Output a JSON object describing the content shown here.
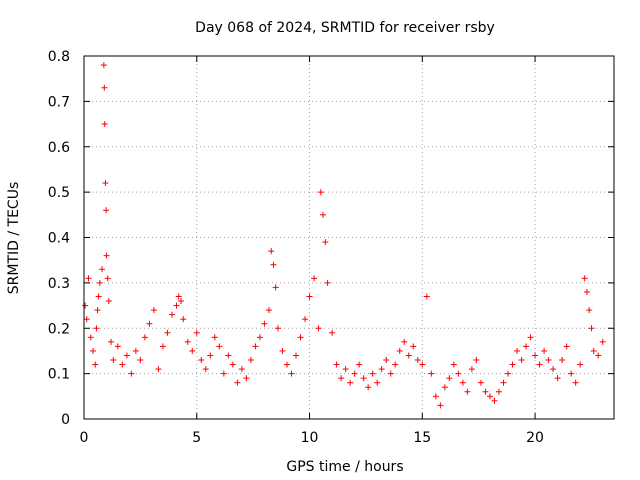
{
  "chart_data": {
    "type": "scatter",
    "title": "Day 068 of 2024, SRMTID for receiver rsby",
    "xlabel": "GPS time / hours",
    "ylabel": "SRMTID / TECUs",
    "xlim": [
      0,
      23.5
    ],
    "ylim": [
      0,
      0.8
    ],
    "xticks": [
      0,
      5,
      10,
      15,
      20
    ],
    "yticks": [
      0,
      0.1,
      0.2,
      0.3,
      0.4,
      0.5,
      0.6,
      0.7,
      0.8
    ],
    "xtick_labels": [
      "0",
      "5",
      "10",
      "15",
      "20"
    ],
    "ytick_labels": [
      "0",
      "0.1",
      "0.2",
      "0.3",
      "0.4",
      "0.5",
      "0.6",
      "0.7",
      "0.8"
    ],
    "grid": true,
    "marker": "+",
    "color": "#ff0000",
    "series": [
      {
        "name": "SRMTID",
        "x": [
          0.05,
          0.12,
          0.2,
          0.3,
          0.4,
          0.5,
          0.55,
          0.6,
          0.65,
          0.7,
          0.8,
          0.88,
          0.9,
          0.92,
          0.95,
          0.98,
          1.0,
          1.05,
          1.1,
          1.2,
          1.3,
          1.5,
          1.7,
          1.9,
          2.1,
          2.3,
          2.5,
          2.7,
          2.9,
          3.1,
          3.3,
          3.5,
          3.7,
          3.9,
          4.1,
          4.2,
          4.3,
          4.4,
          4.6,
          4.8,
          5.0,
          5.2,
          5.4,
          5.6,
          5.8,
          6.0,
          6.2,
          6.4,
          6.6,
          6.8,
          7.0,
          7.2,
          7.4,
          7.6,
          7.8,
          8.0,
          8.2,
          8.3,
          8.4,
          8.5,
          8.6,
          8.8,
          9.0,
          9.2,
          9.4,
          9.6,
          9.8,
          10.0,
          10.2,
          10.4,
          10.5,
          10.6,
          10.7,
          10.8,
          11.0,
          11.2,
          11.4,
          11.6,
          11.8,
          12.0,
          12.2,
          12.4,
          12.6,
          12.8,
          13.0,
          13.2,
          13.4,
          13.6,
          13.8,
          14.0,
          14.2,
          14.4,
          14.6,
          14.8,
          15.0,
          15.2,
          15.4,
          15.6,
          15.8,
          16.0,
          16.2,
          16.4,
          16.6,
          16.8,
          17.0,
          17.2,
          17.4,
          17.6,
          17.8,
          18.0,
          18.2,
          18.4,
          18.6,
          18.8,
          19.0,
          19.2,
          19.4,
          19.6,
          19.8,
          20.0,
          20.2,
          20.4,
          20.6,
          20.8,
          21.0,
          21.2,
          21.4,
          21.6,
          21.8,
          22.0,
          22.2,
          22.3,
          22.4,
          22.5,
          22.6,
          22.8,
          23.0
        ],
        "y": [
          0.25,
          0.22,
          0.31,
          0.18,
          0.15,
          0.12,
          0.2,
          0.24,
          0.27,
          0.3,
          0.33,
          0.78,
          0.73,
          0.65,
          0.52,
          0.46,
          0.36,
          0.31,
          0.26,
          0.17,
          0.13,
          0.16,
          0.12,
          0.14,
          0.1,
          0.15,
          0.13,
          0.18,
          0.21,
          0.24,
          0.11,
          0.16,
          0.19,
          0.23,
          0.25,
          0.27,
          0.26,
          0.22,
          0.17,
          0.15,
          0.19,
          0.13,
          0.11,
          0.14,
          0.18,
          0.16,
          0.1,
          0.14,
          0.12,
          0.08,
          0.11,
          0.09,
          0.13,
          0.16,
          0.18,
          0.21,
          0.24,
          0.37,
          0.34,
          0.29,
          0.2,
          0.15,
          0.12,
          0.1,
          0.14,
          0.18,
          0.22,
          0.27,
          0.31,
          0.2,
          0.5,
          0.45,
          0.39,
          0.3,
          0.19,
          0.12,
          0.09,
          0.11,
          0.08,
          0.1,
          0.12,
          0.09,
          0.07,
          0.1,
          0.08,
          0.11,
          0.13,
          0.1,
          0.12,
          0.15,
          0.17,
          0.14,
          0.16,
          0.13,
          0.12,
          0.27,
          0.1,
          0.05,
          0.03,
          0.07,
          0.09,
          0.12,
          0.1,
          0.08,
          0.06,
          0.11,
          0.13,
          0.08,
          0.06,
          0.05,
          0.04,
          0.06,
          0.08,
          0.1,
          0.12,
          0.15,
          0.13,
          0.16,
          0.18,
          0.14,
          0.12,
          0.15,
          0.13,
          0.11,
          0.09,
          0.13,
          0.16,
          0.1,
          0.08,
          0.12,
          0.31,
          0.28,
          0.24,
          0.2,
          0.15,
          0.14,
          0.17
        ]
      }
    ]
  }
}
